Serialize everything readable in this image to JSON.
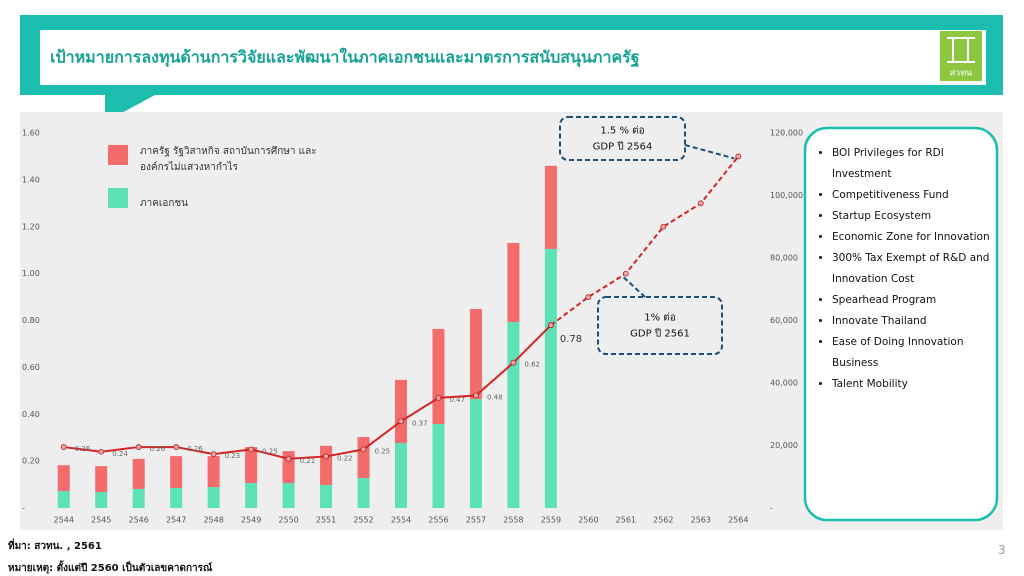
{
  "header": {
    "title": "เป้าหมายการลงทุนด้านการวิจัยและพัฒนาในภาคเอกชนและมาตรการสนับสนุนภาครัฐ",
    "logo": "สวทน"
  },
  "chart_data": {
    "type": "bar",
    "stacked": true,
    "categories": [
      "2544",
      "2545",
      "2546",
      "2547",
      "2548",
      "2549",
      "2550",
      "2551",
      "2552",
      "2554",
      "2556",
      "2557",
      "2558",
      "2559",
      "2560",
      "2561",
      "2562",
      "2563",
      "2564"
    ],
    "series": [
      {
        "name": "ภาคเอกชน",
        "type": "bar",
        "axis": "y2",
        "color": "#5de2b6",
        "values": [
          5400,
          5100,
          6100,
          6400,
          6700,
          8000,
          8000,
          7400,
          9600,
          20800,
          26900,
          34900,
          59500,
          82900,
          null,
          null,
          null,
          null,
          null
        ]
      },
      {
        "name": "ภาครัฐ รัฐวิสาหกิจ สถาบันการศึกษา และองค์กรไม่แสวงหากำไร",
        "type": "bar",
        "axis": "y2",
        "color": "#f46b6b",
        "values": [
          8300,
          8300,
          9600,
          10200,
          9900,
          11500,
          10200,
          12500,
          13100,
          20200,
          30400,
          28800,
          25300,
          26600,
          null,
          null,
          null,
          null,
          null
        ]
      },
      {
        "type": "line",
        "color": "#d42424",
        "values": [
          0.26,
          0.24,
          0.26,
          0.26,
          0.23,
          0.25,
          0.21,
          0.22,
          0.25,
          0.37,
          0.47,
          0.48,
          0.62,
          0.78,
          null,
          null,
          null,
          null,
          null
        ]
      },
      {
        "type": "line",
        "dashed": true,
        "color": "#d42424",
        "values": [
          null,
          null,
          null,
          null,
          null,
          null,
          null,
          null,
          null,
          null,
          null,
          null,
          null,
          0.78,
          0.9,
          1.0,
          1.2,
          1.3,
          1.5
        ]
      }
    ],
    "ylim": [
      0,
      1.6
    ],
    "yticks": [
      {
        "value": 0,
        "label": "-"
      },
      {
        "value": 0.2,
        "label": "0.20"
      },
      {
        "value": 0.4,
        "label": "0.40"
      },
      {
        "value": 0.6,
        "label": "0.60"
      },
      {
        "value": 0.8,
        "label": "0.80"
      },
      {
        "value": 1.0,
        "label": "1.00"
      },
      {
        "value": 1.2,
        "label": "1.20"
      },
      {
        "value": 1.4,
        "label": "1.40"
      },
      {
        "value": 1.6,
        "label": "1.60"
      }
    ],
    "y2lim": [
      0,
      120000
    ],
    "y2ticks": [
      {
        "value": 0,
        "label": "-"
      },
      {
        "value": 20000,
        "label": "20,000"
      },
      {
        "value": 40000,
        "label": "40,000"
      },
      {
        "value": 60000,
        "label": "60,000"
      },
      {
        "value": 80000,
        "label": "80,000"
      },
      {
        "value": 100000,
        "label": "100,000"
      },
      {
        "value": 120000,
        "label": "120,000"
      }
    ],
    "annotations": [
      {
        "lines": [
          "1.5 % ต่อ",
          "GDP ปี 2564"
        ]
      },
      {
        "lines": [
          "1% ต่อ",
          "GDP ปี 2561"
        ]
      }
    ]
  },
  "bullets": [
    "BOI Privileges for RDI Investment",
    "Competitiveness Fund",
    "Startup Ecosystem",
    "Economic Zone for Innovation",
    "300% Tax Exempt of R&D and Innovation Cost",
    "Spearhead Program",
    "Innovate Thailand",
    "Ease of Doing Innovation Business",
    "Talent Mobility"
  ],
  "footer": {
    "source": "ที่มา: สวทน. , 2561",
    "note": "หมายเหตุ: ตั้งแต่ปี 2560 เป็นตัวเลขคาดการณ์"
  },
  "page_number": "3"
}
